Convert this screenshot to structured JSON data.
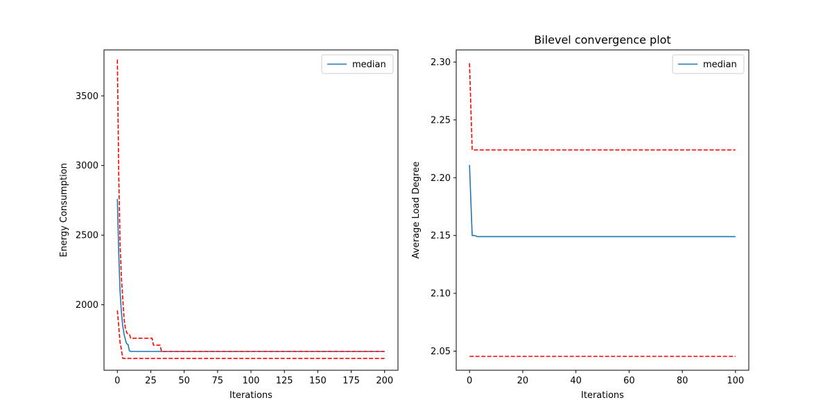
{
  "chart_data": [
    {
      "type": "line",
      "title": "",
      "xlabel": "Iterations",
      "ylabel": "Energy Consumption",
      "xlim": [
        -10,
        210
      ],
      "ylim": [
        1530,
        3830
      ],
      "xticks": [
        0,
        25,
        50,
        75,
        100,
        125,
        150,
        175,
        200
      ],
      "yticks": [
        2000,
        2500,
        3000,
        3500
      ],
      "grid": false,
      "legend": {
        "placement": "upper-right",
        "entries": [
          "median"
        ]
      },
      "series": [
        {
          "name": "median",
          "color": "#1f77b4",
          "style": "solid",
          "points": [
            [
              0,
              2760
            ],
            [
              1,
              2380
            ],
            [
              2,
              2100
            ],
            [
              3,
              1950
            ],
            [
              4,
              1850
            ],
            [
              5,
              1790
            ],
            [
              6,
              1750
            ],
            [
              7,
              1720
            ],
            [
              8,
              1715
            ],
            [
              9,
              1670
            ],
            [
              10,
              1665
            ],
            [
              50,
              1665
            ],
            [
              100,
              1665
            ],
            [
              150,
              1665
            ],
            [
              200,
              1665
            ]
          ]
        },
        {
          "color": "#ff0000",
          "style": "dashed",
          "points": [
            [
              0,
              3760
            ],
            [
              1,
              2950
            ],
            [
              2,
              2450
            ],
            [
              3,
              2200
            ],
            [
              4,
              2050
            ],
            [
              5,
              1900
            ],
            [
              6,
              1830
            ],
            [
              7,
              1800
            ],
            [
              8,
              1790
            ],
            [
              9,
              1790
            ],
            [
              10,
              1760
            ],
            [
              26,
              1760
            ],
            [
              27,
              1710
            ],
            [
              32,
              1710
            ],
            [
              33,
              1665
            ],
            [
              200,
              1665
            ]
          ]
        },
        {
          "color": "#ff0000",
          "style": "dashed",
          "points": [
            [
              0,
              1960
            ],
            [
              1,
              1850
            ],
            [
              2,
              1730
            ],
            [
              3,
              1680
            ],
            [
              4,
              1615
            ],
            [
              200,
              1615
            ]
          ]
        }
      ]
    },
    {
      "type": "line",
      "title": "Bilevel convergence plot",
      "xlabel": "Iterations",
      "ylabel": "Average Load Degree",
      "xlim": [
        -5,
        105
      ],
      "ylim": [
        2.0335,
        2.3105
      ],
      "xticks": [
        0,
        20,
        40,
        60,
        80,
        100
      ],
      "yticks": [
        2.05,
        2.1,
        2.15,
        2.2,
        2.25,
        2.3
      ],
      "ytick_decimals": 2,
      "grid": false,
      "legend": {
        "placement": "upper-right",
        "entries": [
          "median"
        ]
      },
      "series": [
        {
          "name": "median",
          "color": "#1f77b4",
          "style": "solid",
          "points": [
            [
              0,
              2.211
            ],
            [
              1,
              2.15
            ],
            [
              2,
              2.15
            ],
            [
              3,
              2.149
            ],
            [
              100,
              2.149
            ]
          ]
        },
        {
          "color": "#ff0000",
          "style": "dashed",
          "points": [
            [
              0,
              2.299
            ],
            [
              1,
              2.224
            ],
            [
              100,
              2.224
            ]
          ]
        },
        {
          "color": "#ff0000",
          "style": "dashed",
          "points": [
            [
              0,
              2.0455
            ],
            [
              100,
              2.0455
            ]
          ]
        }
      ]
    }
  ]
}
